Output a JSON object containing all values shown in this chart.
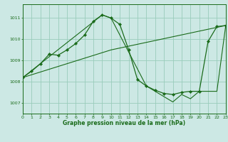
{
  "title": "Graphe pression niveau de la mer (hPa)",
  "bg_color": "#cce8e4",
  "line_color": "#1a6b1a",
  "grid_color": "#99ccbb",
  "xlim": [
    0,
    23
  ],
  "ylim": [
    1006.5,
    1011.65
  ],
  "yticks": [
    1007,
    1008,
    1009,
    1010,
    1011
  ],
  "xticks": [
    0,
    1,
    2,
    3,
    4,
    5,
    6,
    7,
    8,
    9,
    10,
    11,
    12,
    13,
    14,
    15,
    16,
    17,
    18,
    19,
    20,
    21,
    22,
    23
  ],
  "s1x": [
    0,
    1,
    2,
    3,
    4,
    5,
    6,
    7,
    8,
    9,
    10,
    11,
    12,
    13,
    14,
    15,
    16,
    17,
    18,
    19,
    20,
    21,
    22,
    23
  ],
  "s1y": [
    1008.2,
    1008.5,
    1008.85,
    1009.3,
    1009.25,
    1009.5,
    1009.8,
    1010.2,
    1010.85,
    1011.15,
    1011.0,
    1010.7,
    1009.5,
    1008.1,
    1007.8,
    1007.6,
    1007.45,
    1007.4,
    1007.5,
    1007.55,
    1007.55,
    1009.9,
    1010.6,
    1010.65
  ],
  "s2x": [
    0,
    10,
    23
  ],
  "s2y": [
    1008.2,
    1009.5,
    1010.65
  ],
  "s3x": [
    0,
    9,
    10,
    14,
    17,
    18,
    19,
    20,
    22,
    23
  ],
  "s3y": [
    1008.2,
    1011.15,
    1011.0,
    1007.8,
    1007.05,
    1007.4,
    1007.2,
    1007.55,
    1007.55,
    1010.65
  ]
}
